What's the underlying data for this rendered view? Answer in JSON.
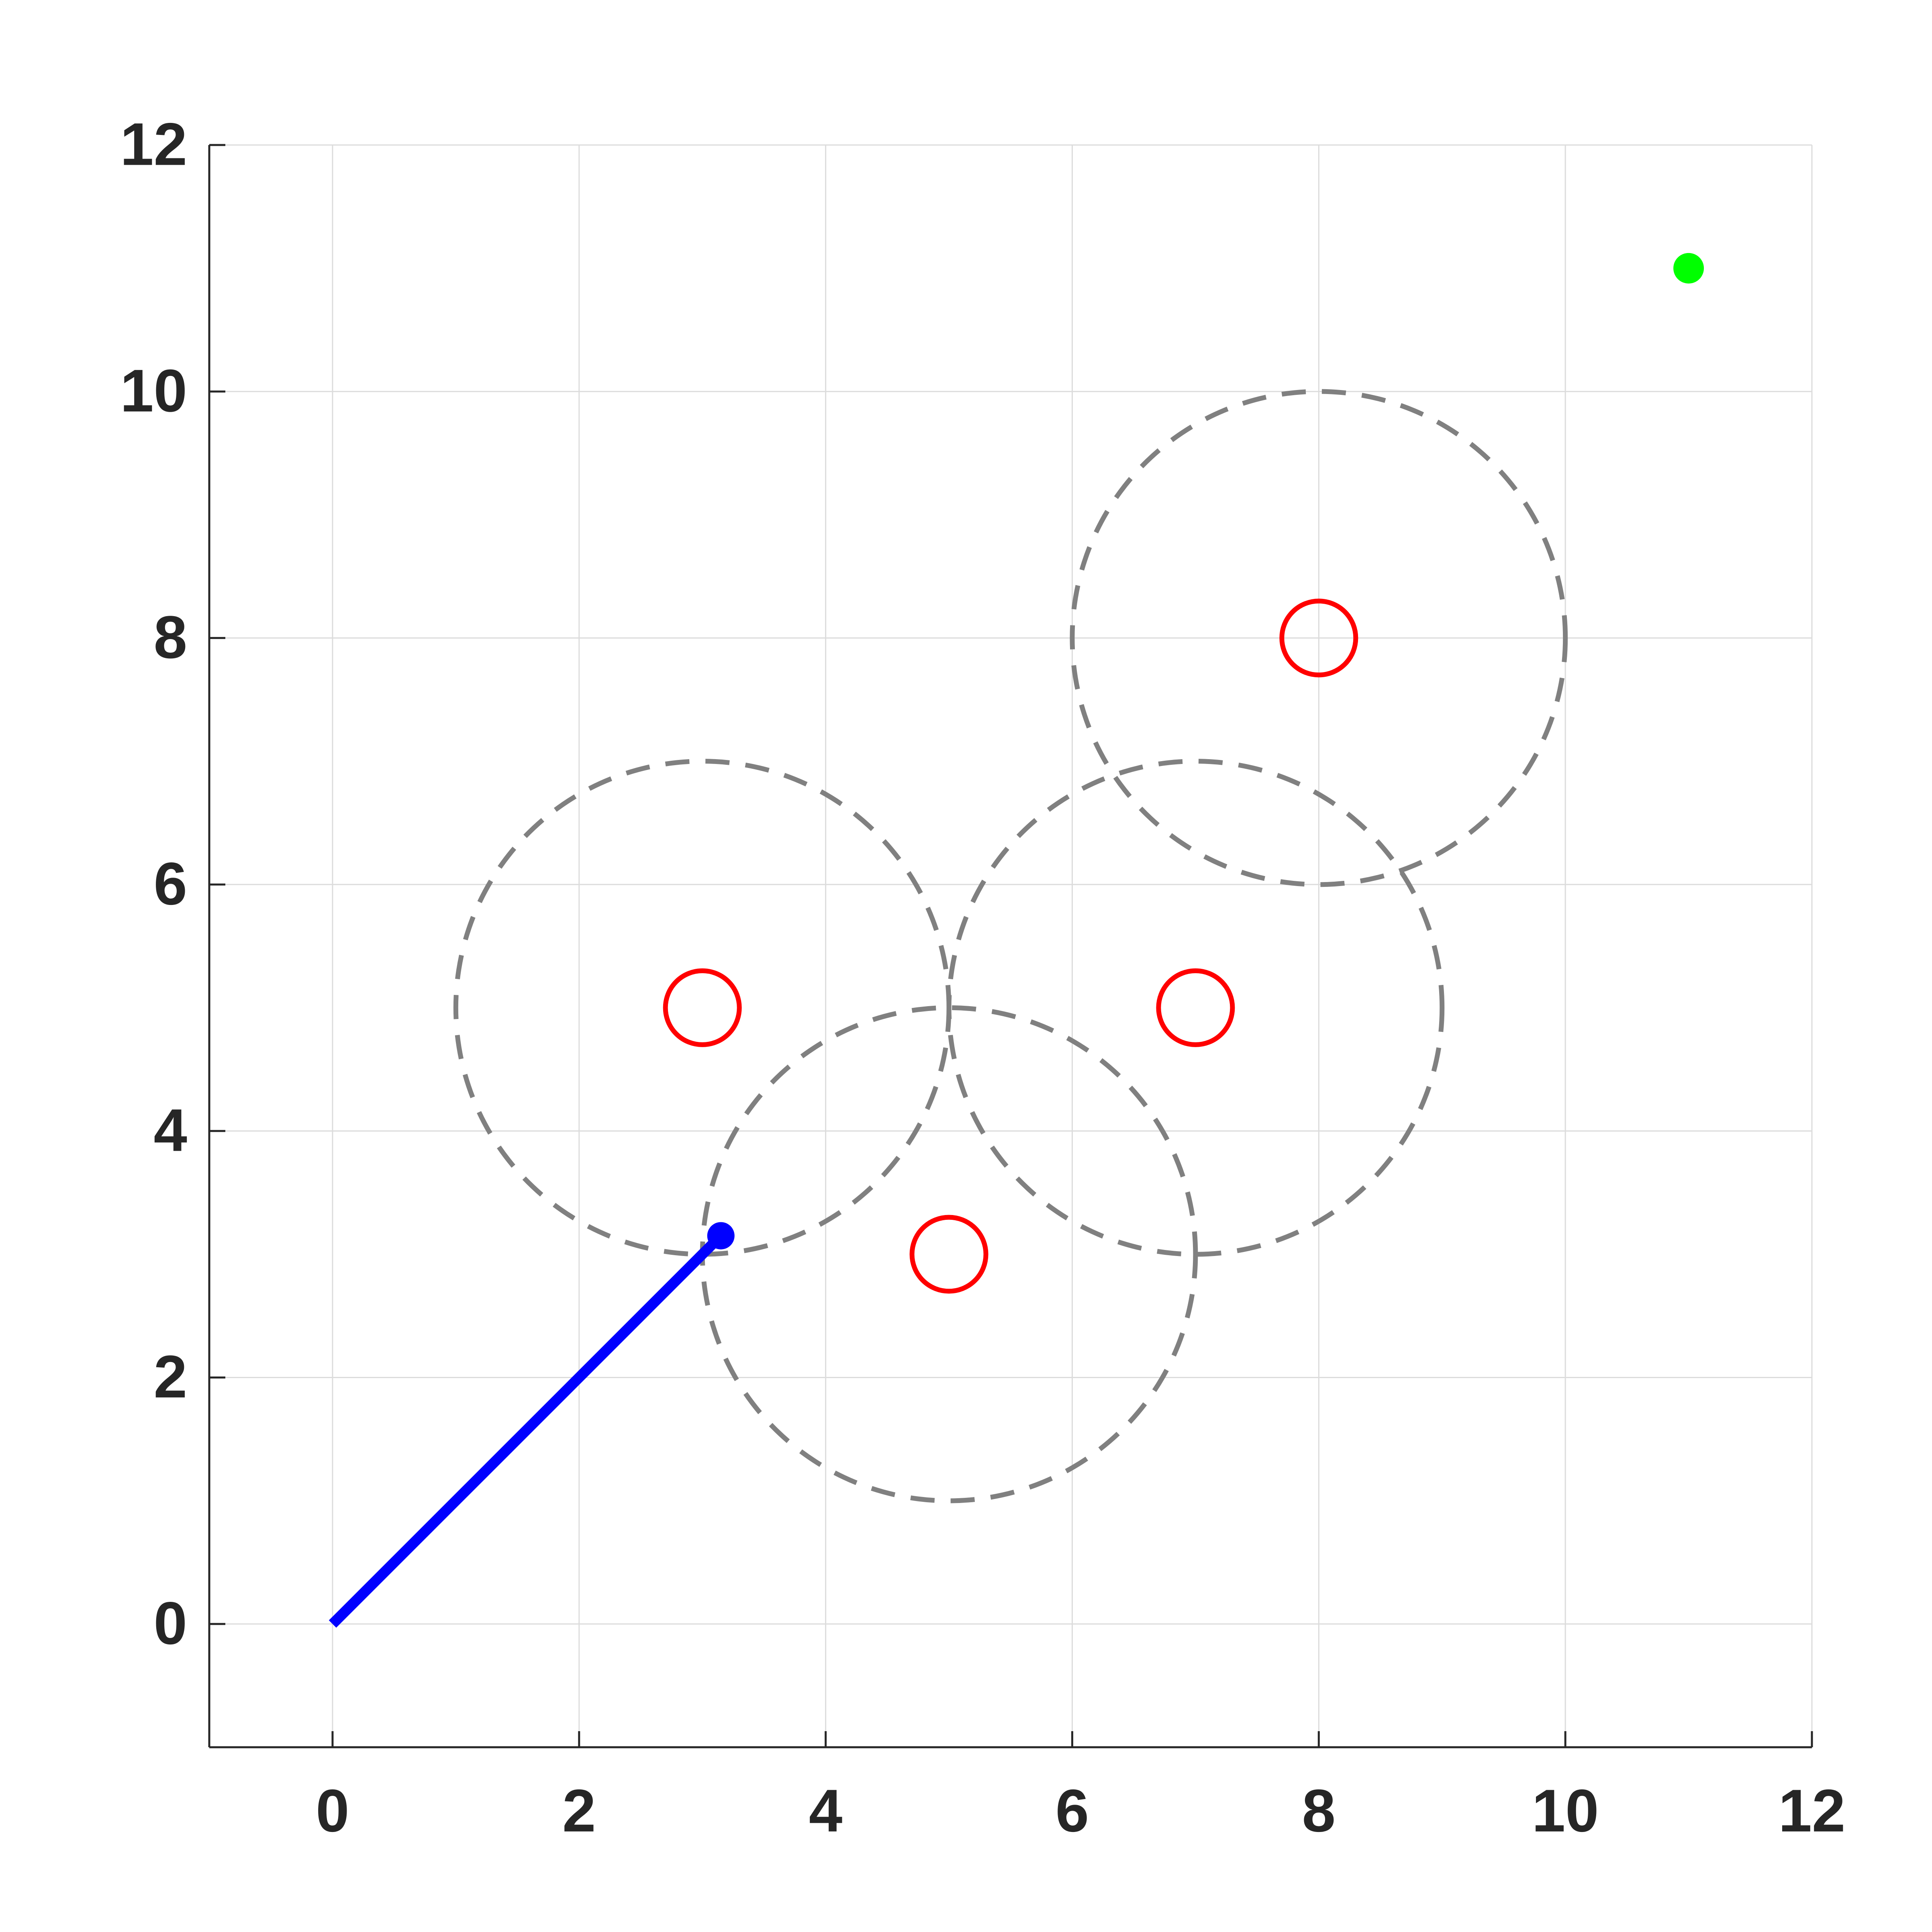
{
  "chart_data": {
    "type": "scatter",
    "xlim": [
      -1,
      12
    ],
    "ylim": [
      -1,
      12
    ],
    "xticks": [
      0,
      2,
      4,
      6,
      8,
      10,
      12
    ],
    "yticks": [
      0,
      2,
      4,
      6,
      8,
      10,
      12
    ],
    "grid": true,
    "path": {
      "x": [
        0,
        3.15
      ],
      "y": [
        0,
        3.15
      ],
      "color": "#0000ff"
    },
    "goal": {
      "x": 11,
      "y": 11,
      "color": "#00ff00"
    },
    "obstacles": {
      "x": [
        3,
        7,
        5,
        8
      ],
      "y": [
        5,
        5,
        3,
        8
      ],
      "radius": [
        2,
        2,
        2,
        2
      ],
      "color": "#ff0000",
      "range_color": "#808080"
    }
  }
}
